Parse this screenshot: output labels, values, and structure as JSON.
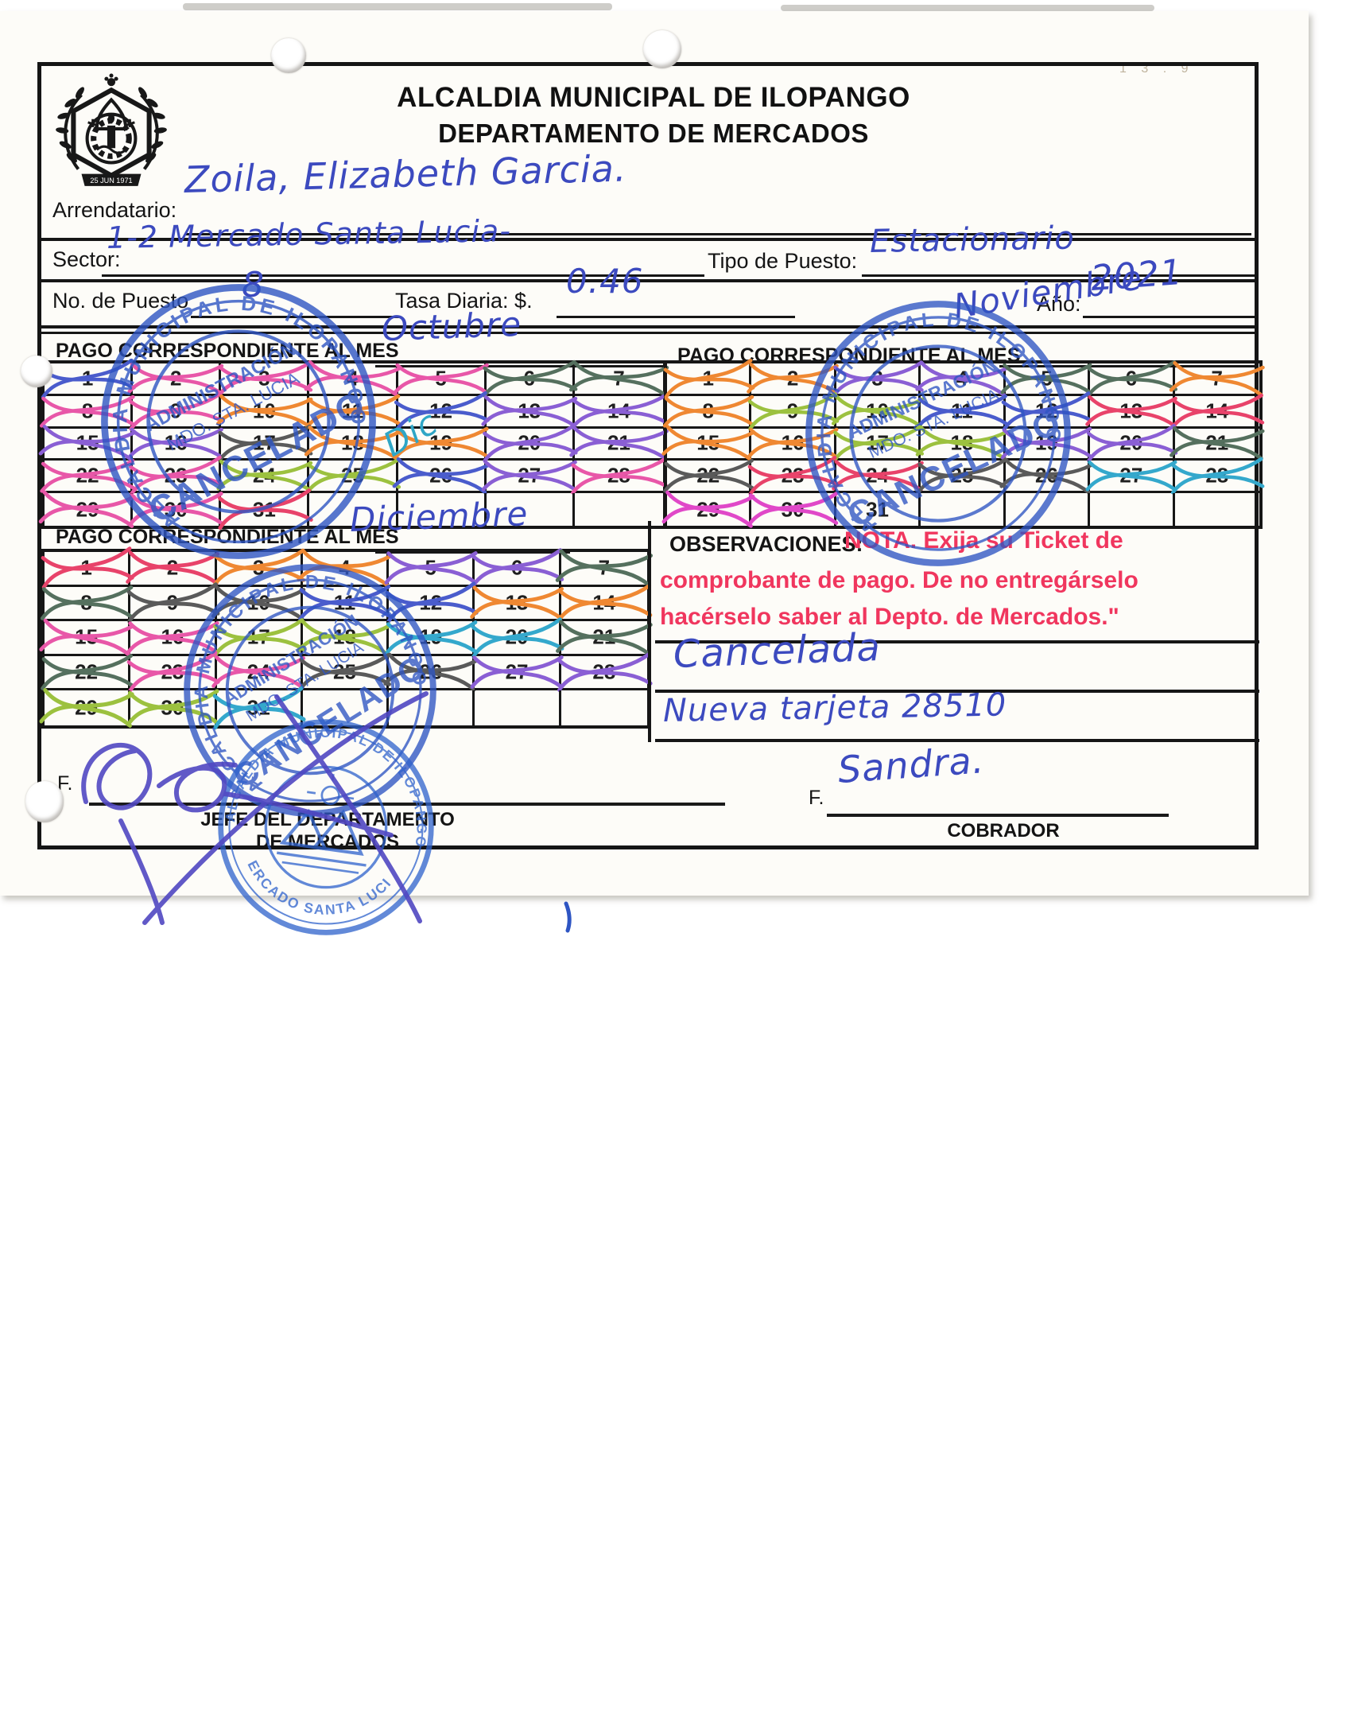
{
  "document": {
    "title_line1": "ALCALDIA MUNICIPAL DE ILOPANGO",
    "title_line2": "DEPARTAMENTO DE MERCADOS",
    "logo_banner": "25 JUN 1971"
  },
  "fields": {
    "arrendatario_label": "Arrendatario:",
    "arrendatario_value": "Zoila, Elizabeth Garcia.",
    "sector_label": "Sector:",
    "sector_value": "1-2 Mercado Santa Lucia-",
    "tipo_puesto_label": "Tipo de Puesto:",
    "tipo_puesto_value": "Estacionario",
    "no_puesto_label": "No. de Puesto",
    "no_puesto_value": "8",
    "tasa_diaria_label": "Tasa Diaria: $.",
    "tasa_diaria_value": "0.46",
    "anio_label": "Año:",
    "anio_value": "2021"
  },
  "months": [
    {
      "header_label": "PAGO CORRESPONDIENTE AL MES",
      "month_name": "Octubre",
      "days": [
        1,
        2,
        3,
        4,
        5,
        6,
        7,
        8,
        9,
        10,
        11,
        12,
        13,
        14,
        15,
        16,
        17,
        18,
        19,
        20,
        21,
        22,
        23,
        24,
        25,
        26,
        27,
        28,
        29,
        30,
        31
      ],
      "mark_colors": [
        "#4a5ccc",
        "#e857a8",
        "#e857a8",
        "#e857a8",
        "#e857a8",
        "#55705e",
        "#55705e",
        "#e857a8",
        "#e857a8",
        "#ef8832",
        "#ef8832",
        "#4a5ccc",
        "#8a5fd4",
        "#8a5fd4",
        "#8a5fd4",
        "#8a5fd4",
        "#5a5a5a",
        "#ef8832",
        "#ef8832",
        "#8a5fd4",
        "#8a5fd4",
        "#e857a8",
        "#e857a8",
        "#9cc13f",
        "#9cc13f",
        "#4a5ccc",
        "#8a5fd4",
        "#e857a8",
        "#e857a8",
        "#e857a8",
        "#e8436a"
      ]
    },
    {
      "header_label": "PAGO CORRESPONDIENTE AL MES",
      "month_name": "Noviembre",
      "days": [
        1,
        2,
        3,
        4,
        5,
        6,
        7,
        8,
        9,
        10,
        11,
        12,
        13,
        14,
        15,
        16,
        17,
        18,
        19,
        20,
        21,
        22,
        23,
        24,
        25,
        26,
        27,
        28,
        29,
        30,
        31
      ],
      "mark_colors": [
        "#ef8832",
        "#ef8832",
        "#8a5fd4",
        "#8a5fd4",
        "#55705e",
        "#55705e",
        "#ef8832",
        "#ef8832",
        "#9cc13f",
        "#9cc13f",
        "#4a5ccc",
        "#4a5ccc",
        "#e8436a",
        "#e8436a",
        "#ef8832",
        "#ef8832",
        "#9cc13f",
        "#9cc13f",
        "#8a5fd4",
        "#8a5fd4",
        "#55705e",
        "#5a5a5a",
        "#e8436a",
        "#e8436a",
        "#5a5a5a",
        "#5a5a5a",
        "#34a8cc",
        "#34a8cc",
        "#e048c8",
        "#e048c8",
        null
      ]
    },
    {
      "header_label": "PAGO CORRESPONDIENTE AL MES",
      "month_name": "Diciembre",
      "days": [
        1,
        2,
        3,
        4,
        5,
        6,
        7,
        8,
        9,
        10,
        11,
        12,
        13,
        14,
        15,
        16,
        17,
        18,
        19,
        20,
        21,
        22,
        23,
        24,
        25,
        26,
        27,
        28,
        29,
        30,
        31
      ],
      "mark_colors": [
        "#e8436a",
        "#e8436a",
        "#ef8832",
        "#ef8832",
        "#8a5fd4",
        "#8a5fd4",
        "#55705e",
        "#55705e",
        "#5a5a5a",
        "#5a5a5a",
        "#4a5ccc",
        "#4a5ccc",
        "#ef8832",
        "#ef8832",
        "#e857a8",
        "#e857a8",
        "#9cc13f",
        "#9cc13f",
        "#34a8cc",
        "#34a8cc",
        "#55705e",
        "#55705e",
        "#e857a8",
        "#e857a8",
        "#5a5a5a",
        "#5a5a5a",
        "#8a5fd4",
        "#8a5fd4",
        "#9cc13f",
        "#9cc13f",
        "#34a8cc"
      ]
    }
  ],
  "observaciones": {
    "label": "OBSERVACIONES:",
    "nota_line1": "NOTA. Exija su Ticket de",
    "nota_line2": "comprobante de pago. De no entregárselo",
    "nota_line3": "hacérselo saber al Depto. de Mercados.\"",
    "hand_note1": "Cancelada",
    "hand_note2": "Nueva tarjeta 28510"
  },
  "annotations": {
    "dic_note": "Dic",
    "corner_marks": "1 3 . 9"
  },
  "signatures": {
    "left_f_label": "F.",
    "left_title_line1": "JEFE DEL DEPARTAMENTO",
    "left_title_line2": "DE MERCADOS",
    "right_f_label": "F.",
    "right_hand_name": "Sandra.",
    "right_title": "COBRADOR"
  },
  "stamps": {
    "ring_text": "ALCALDIA MUNICIPAL DE ILOPANGO",
    "center_line1": "ADMINISTRACIÓN",
    "center_line2": "MDO. STA. LUCIA",
    "center_line3": "CANCELADO",
    "seal_top_text": "ALCALDIA MUNICIPAL DE ILOPANGO",
    "seal_bottom_text": "MERCADO SANTA LUCIA",
    "ink_color": "#2e55c3"
  },
  "colors": {
    "hand_ink": "#3c4abf",
    "nota_red": "#f0365e",
    "line_black": "#161616"
  }
}
